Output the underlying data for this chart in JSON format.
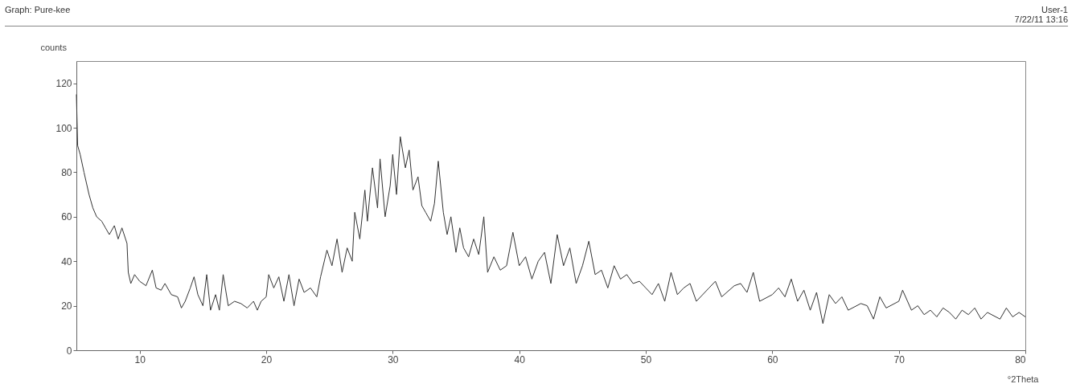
{
  "chart_data": {
    "type": "line",
    "title": "Graph: Pure-kee",
    "annotations": [
      "User-1",
      "7/22/11 13:16"
    ],
    "xlabel": "°2Theta",
    "ylabel": "counts",
    "xlim": [
      5,
      80
    ],
    "xticks": [
      10,
      20,
      30,
      40,
      50,
      60,
      70,
      80
    ],
    "ylim": [
      0,
      130
    ],
    "yticks": [
      0,
      20,
      40,
      60,
      80,
      100,
      120
    ],
    "grid": false,
    "marker": "none",
    "line_style": "solid",
    "series": [
      {
        "color": "#333333",
        "x": [
          5,
          5.1,
          5.3,
          5.6,
          6,
          6.3,
          6.6,
          7,
          7.3,
          7.6,
          8,
          8.3,
          8.6,
          9,
          9.1,
          9.3,
          9.6,
          10,
          10.5,
          11,
          11.3,
          11.7,
          12,
          12.5,
          13,
          13.3,
          13.6,
          14,
          14.3,
          14.6,
          15,
          15.3,
          15.6,
          16,
          16.3,
          16.6,
          17,
          17.5,
          18,
          18.5,
          19,
          19.3,
          19.6,
          20,
          20.2,
          20.6,
          21,
          21.4,
          21.8,
          22.2,
          22.6,
          23,
          23.5,
          24,
          24.3,
          24.8,
          25.2,
          25.6,
          26,
          26.4,
          26.8,
          27,
          27.4,
          27.8,
          28,
          28.4,
          28.8,
          29,
          29.4,
          29.8,
          30,
          30.3,
          30.6,
          31,
          31.3,
          31.6,
          32,
          32.3,
          32.6,
          33,
          33.3,
          33.6,
          34,
          34.3,
          34.6,
          35,
          35.3,
          35.6,
          36,
          36.4,
          36.8,
          37.2,
          37.5,
          38,
          38.5,
          39,
          39.5,
          40,
          40.5,
          41,
          41.5,
          42,
          42.5,
          43,
          43.5,
          44,
          44.5,
          45,
          45.5,
          46,
          46.5,
          47,
          47.5,
          48,
          48.5,
          49,
          49.5,
          50,
          50.5,
          51,
          51.5,
          52,
          52.5,
          53,
          53.5,
          54,
          55,
          55.5,
          56,
          57,
          57.5,
          58,
          58.5,
          59,
          60,
          60.5,
          61,
          61.5,
          62,
          62.5,
          63,
          63.5,
          64,
          64.5,
          65,
          65.5,
          66,
          67,
          67.5,
          68,
          68.5,
          69,
          70,
          70.3,
          71,
          71.5,
          72,
          72.5,
          73,
          73.5,
          74,
          74.5,
          75,
          75.5,
          76,
          76.5,
          77,
          78,
          78.5,
          79,
          79.5,
          80
        ],
        "values": [
          115,
          92,
          88,
          80,
          70,
          64,
          60,
          58,
          55,
          52,
          56,
          50,
          55,
          48,
          35,
          30,
          34,
          31,
          29,
          36,
          28,
          27,
          30,
          25,
          24,
          19,
          22,
          28,
          33,
          25,
          20,
          34,
          18,
          25,
          18,
          34,
          20,
          22,
          21,
          19,
          22,
          18,
          22,
          24,
          34,
          28,
          33,
          22,
          34,
          20,
          32,
          26,
          28,
          24,
          33,
          45,
          38,
          50,
          35,
          46,
          40,
          62,
          50,
          72,
          58,
          82,
          64,
          86,
          60,
          74,
          88,
          70,
          96,
          82,
          90,
          72,
          78,
          65,
          62,
          58,
          66,
          85,
          62,
          52,
          60,
          44,
          55,
          46,
          42,
          50,
          43,
          60,
          35,
          42,
          36,
          38,
          53,
          38,
          42,
          32,
          40,
          44,
          30,
          52,
          38,
          46,
          30,
          38,
          49,
          34,
          36,
          28,
          38,
          32,
          34,
          30,
          31,
          28,
          25,
          30,
          22,
          35,
          25,
          28,
          30,
          22,
          28,
          31,
          24,
          29,
          30,
          26,
          35,
          22,
          25,
          28,
          24,
          32,
          22,
          27,
          18,
          26,
          12,
          25,
          21,
          24,
          18,
          21,
          20,
          14,
          24,
          19,
          22,
          27,
          18,
          20,
          16,
          18,
          15,
          19,
          17,
          14,
          18,
          16,
          19,
          14,
          17,
          14,
          19,
          15,
          17,
          15
        ]
      }
    ]
  }
}
